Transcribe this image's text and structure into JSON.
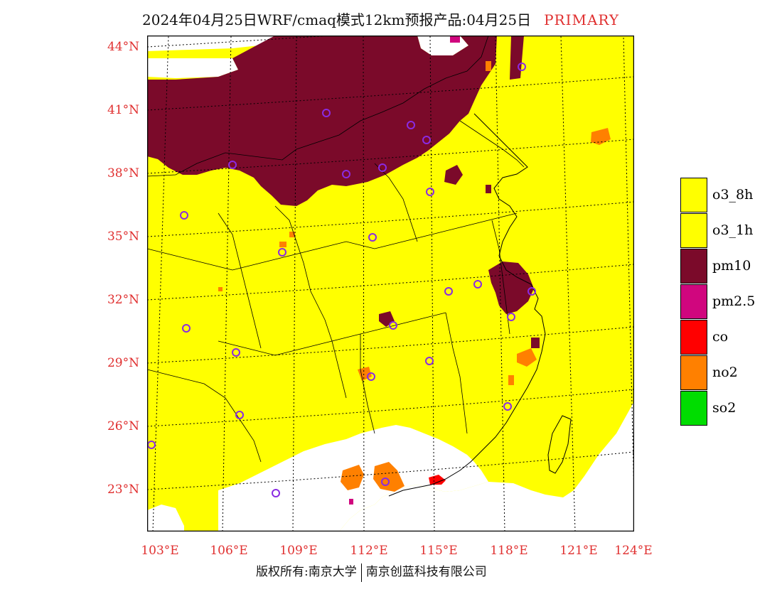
{
  "title": {
    "text": "2024年04月25日WRF/cmaq模式12km预报产品:04月25日",
    "tag": "PRIMARY"
  },
  "axes": {
    "lat_labels": [
      "44°N",
      "41°N",
      "38°N",
      "35°N",
      "32°N",
      "29°N",
      "26°N",
      "23°N"
    ],
    "lon_labels": [
      "103°E",
      "106°E",
      "109°E",
      "112°E",
      "115°E",
      "118°E",
      "121°E",
      "124°E"
    ]
  },
  "legend": {
    "items": [
      {
        "label": "o3_8h",
        "color": "#ffff00"
      },
      {
        "label": "o3_1h",
        "color": "#ffff00"
      },
      {
        "label": "pm10",
        "color": "#7b0a2a"
      },
      {
        "label": "pm2.5",
        "color": "#d0067e"
      },
      {
        "label": "co",
        "color": "#ff0000"
      },
      {
        "label": "no2",
        "color": "#ff8000"
      },
      {
        "label": "so2",
        "color": "#00dd00"
      }
    ]
  },
  "colors": {
    "o3": "#ffff00",
    "pm10": "#7b0a2a",
    "pm25": "#d0067e",
    "co": "#ff0000",
    "no2": "#ff8000",
    "station_marker": "#8a2be2",
    "label_red": "#e03030"
  },
  "footer": {
    "left": "版权所有:南京大学",
    "right": "南京创蓝科技有限公司"
  }
}
